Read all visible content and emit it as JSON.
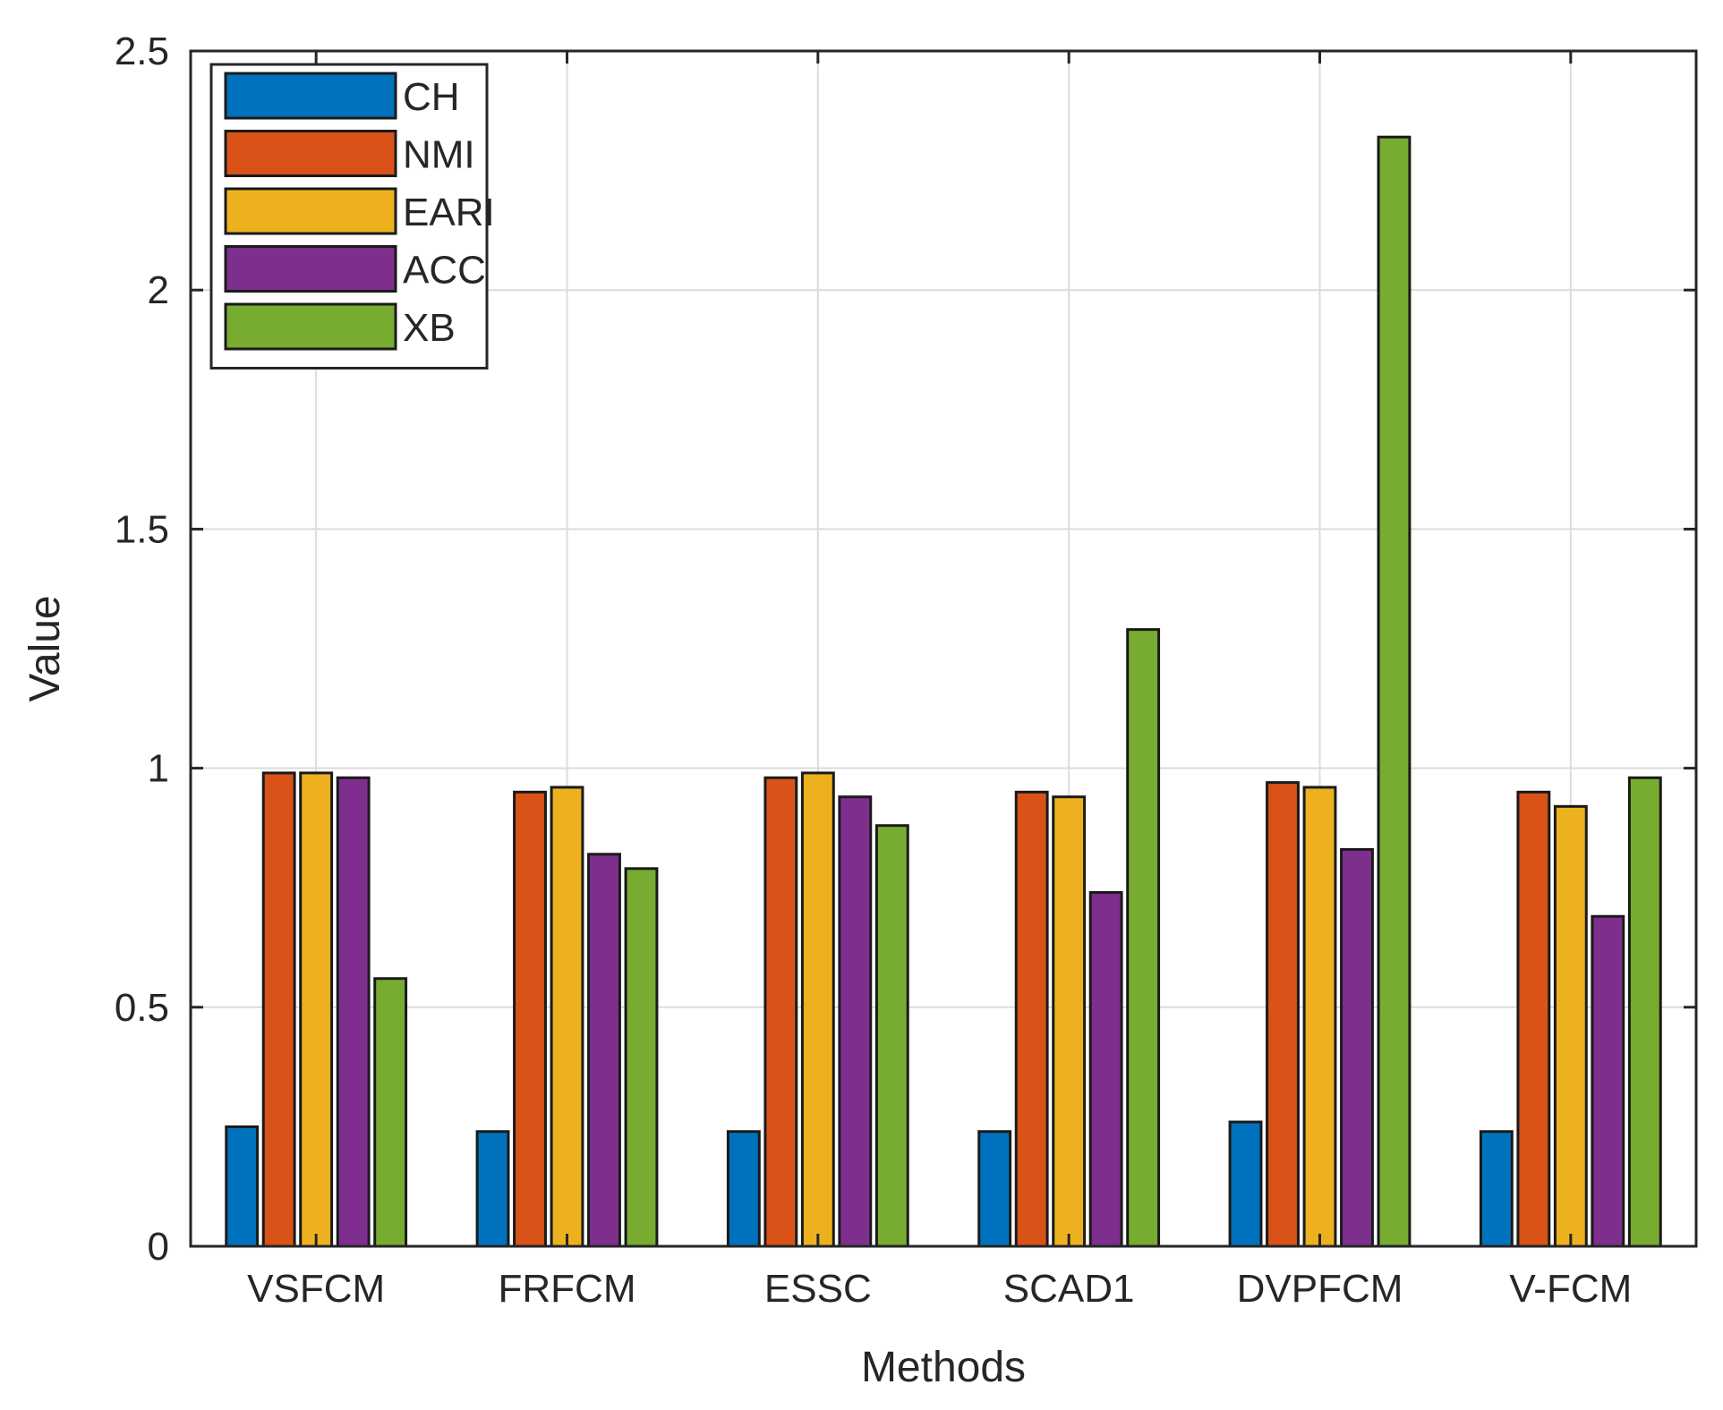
{
  "chart_data": {
    "type": "bar",
    "title": "",
    "xlabel": "Methods",
    "ylabel": "Value",
    "ylim": [
      0,
      2.5
    ],
    "yticks": [
      "0",
      "0.5",
      "1",
      "1.5",
      "2",
      "2.5"
    ],
    "grid": true,
    "legend_position": "top-left",
    "categories": [
      "VSFCM",
      "FRFCM",
      "ESSC",
      "SCAD1",
      "DVPFCM",
      "V-FCM"
    ],
    "series": [
      {
        "name": "CH",
        "color": "#0072BD",
        "values": [
          0.25,
          0.24,
          0.24,
          0.24,
          0.26,
          0.24
        ]
      },
      {
        "name": "NMI",
        "color": "#D95319",
        "values": [
          0.99,
          0.95,
          0.98,
          0.95,
          0.97,
          0.95
        ]
      },
      {
        "name": "EARI",
        "color": "#EDB120",
        "values": [
          0.99,
          0.96,
          0.99,
          0.94,
          0.96,
          0.92
        ]
      },
      {
        "name": "ACC",
        "color": "#7E2F8E",
        "values": [
          0.98,
          0.82,
          0.94,
          0.74,
          0.83,
          0.69
        ]
      },
      {
        "name": "XB",
        "color": "#77AC30",
        "values": [
          0.56,
          0.79,
          0.88,
          1.29,
          2.32,
          0.98
        ]
      }
    ]
  }
}
